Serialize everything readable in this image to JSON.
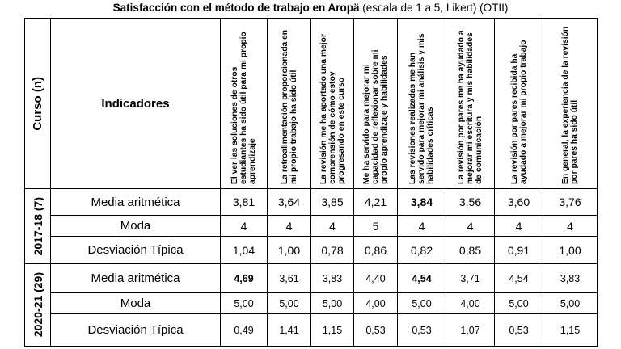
{
  "title": {
    "main": "Satisfacción con el método de trabajo en Aropä",
    "suffix": "(escala de 1 a 5, Likert) (OTII)"
  },
  "table": {
    "course_header": "Curso (n)",
    "indicator_header": "Indicadores",
    "columns": [
      "El ver las soluciones de otros estudiantes ha sido útil para mi propio aprendizaje",
      "La retroalimentación proporcionada en mi propio trabajo ha sido útil",
      "La revisión me ha aportado una mejor comprensión de cómo estoy progresando en este curso",
      "Me ha servido para mejorar mi capacidad de reflexionar sobre mi propio aprendizaje y habilidades",
      "Las revisiones realizadas me han servido para mejorar mi análisis y mis habilidades críticas",
      "La revisión por pares me ha ayudado a mejorar mi escritura y mis habilidades de comunicación",
      "La revisión por pares recibida ha ayudado a mejorar mi propio trabajo",
      "En general, la experiencia de la revisión por pares ha sido útil"
    ],
    "groups": [
      {
        "course": "2017-18 (7)",
        "rows": [
          {
            "indicator": "Media aritmética",
            "values": [
              "3,81",
              "3,64",
              "3,85",
              "4,21",
              "3,84",
              "3,56",
              "3,60",
              "3,76"
            ]
          },
          {
            "indicator": "Moda",
            "values": [
              "4",
              "4",
              "4",
              "5",
              "4",
              "4",
              "4",
              "4"
            ]
          },
          {
            "indicator": "Desviación Típica",
            "values": [
              "1,04",
              "1,00",
              "0,78",
              "0,86",
              "0,82",
              "0,85",
              "0,91",
              "1,00"
            ]
          }
        ]
      },
      {
        "course": "2020-21 (29)",
        "rows": [
          {
            "indicator": "Media aritmética",
            "values": [
              "4,69",
              "3,61",
              "3,83",
              "4,40",
              "4,54",
              "3,71",
              "4,54",
              "3,83"
            ]
          },
          {
            "indicator": "Moda",
            "values": [
              "5,00",
              "5,00",
              "5,00",
              "4,00",
              "5,00",
              "4,00",
              "5,00",
              "5,00"
            ]
          },
          {
            "indicator": "Desviación Típica",
            "values": [
              "0,49",
              "1,41",
              "1,15",
              "0,53",
              "0,53",
              "1,07",
              "0,53",
              "1,15"
            ]
          }
        ]
      }
    ]
  }
}
